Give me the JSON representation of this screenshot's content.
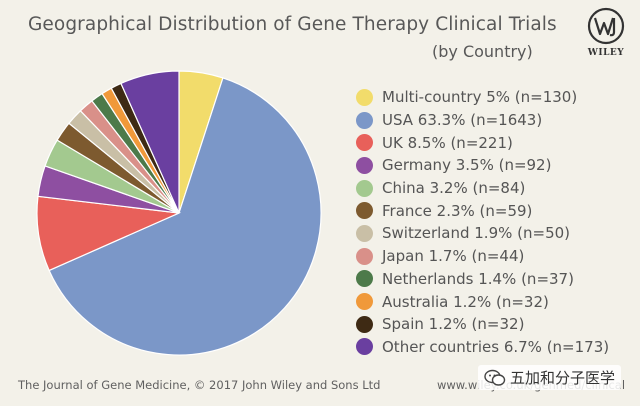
{
  "title": "Geographical Distribution of Gene Therapy Clinical Trials",
  "subtitle": "(by Country)",
  "logo_text": "WILEY",
  "footer_left": "The Journal of Gene Medicine, © 2017 John Wiley and Sons Ltd",
  "footer_right": "www.wiley.co.uk/genmed/clinical",
  "watermark_text": "五加和分子医学",
  "watermark_icon": "wechat-icon",
  "chart_data": {
    "type": "pie",
    "title": "Geographical Distribution of Gene Therapy Clinical Trials",
    "subtitle": "(by Country)",
    "legend_position": "right",
    "start_angle_deg": 0,
    "direction": "clockwise",
    "slices": [
      {
        "label": "Multi-country 5% (n=130)",
        "name": "Multi-country",
        "percent": 5.0,
        "n": 130,
        "color": "#f2dc6b"
      },
      {
        "label": "USA 63.3% (n=1643)",
        "name": "USA",
        "percent": 63.3,
        "n": 1643,
        "color": "#7b97c8"
      },
      {
        "label": "UK 8.5% (n=221)",
        "name": "UK",
        "percent": 8.5,
        "n": 221,
        "color": "#e8605a"
      },
      {
        "label": "Germany 3.5% (n=92)",
        "name": "Germany",
        "percent": 3.5,
        "n": 92,
        "color": "#8e4fa1"
      },
      {
        "label": "China 3.2% (n=84)",
        "name": "China",
        "percent": 3.2,
        "n": 84,
        "color": "#a3c98f"
      },
      {
        "label": "France 2.3% (n=59)",
        "name": "France",
        "percent": 2.3,
        "n": 59,
        "color": "#7d5a2f"
      },
      {
        "label": "Switzerland 1.9% (n=50)",
        "name": "Switzerland",
        "percent": 1.9,
        "n": 50,
        "color": "#c9bfa6"
      },
      {
        "label": "Japan 1.7% (n=44)",
        "name": "Japan",
        "percent": 1.7,
        "n": 44,
        "color": "#d99089"
      },
      {
        "label": "Netherlands 1.4% (n=37)",
        "name": "Netherlands",
        "percent": 1.4,
        "n": 37,
        "color": "#4d7a4a"
      },
      {
        "label": "Australia 1.2% (n=32)",
        "name": "Australia",
        "percent": 1.2,
        "n": 32,
        "color": "#f0993a"
      },
      {
        "label": "Spain 1.2% (n=32)",
        "name": "Spain",
        "percent": 1.2,
        "n": 32,
        "color": "#3e2a14"
      },
      {
        "label": "Other countries 6.7% (n=173)",
        "name": "Other countries",
        "percent": 6.7,
        "n": 173,
        "color": "#6a3fa0"
      }
    ]
  }
}
